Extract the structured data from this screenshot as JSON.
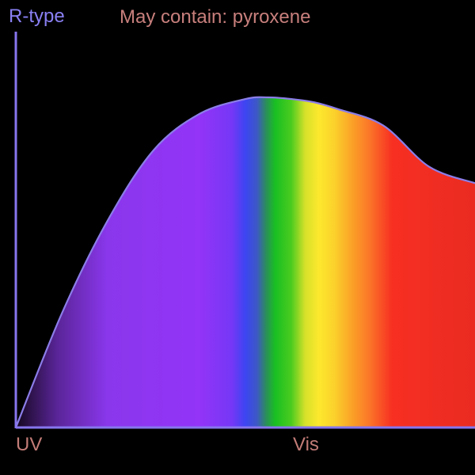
{
  "chart_data": {
    "type": "area",
    "title": "R-type",
    "subtitle": "May contain: pyroxene",
    "x_tick_labels": [
      "UV",
      "Vis"
    ],
    "xlim": [
      0,
      1
    ],
    "ylim": [
      0,
      1
    ],
    "x": [
      0.0,
      0.1,
      0.2,
      0.3,
      0.4,
      0.5,
      0.55,
      0.6,
      0.65,
      0.7,
      0.8,
      0.9,
      1.0
    ],
    "y": [
      0.0,
      0.345,
      0.627,
      0.84,
      0.95,
      0.995,
      1.0,
      0.995,
      0.985,
      0.965,
      0.915,
      0.79,
      0.74
    ],
    "spectrum_colors": [
      {
        "offset": 0.0,
        "color": "#150820"
      },
      {
        "offset": 0.09,
        "color": "#5a2598"
      },
      {
        "offset": 0.2,
        "color": "#8a37ec"
      },
      {
        "offset": 0.4,
        "color": "#9334f7"
      },
      {
        "offset": 0.47,
        "color": "#7637f6"
      },
      {
        "offset": 0.5,
        "color": "#3c45f2"
      },
      {
        "offset": 0.525,
        "color": "#3d58c6"
      },
      {
        "offset": 0.545,
        "color": "#2b8e5a"
      },
      {
        "offset": 0.565,
        "color": "#19bf22"
      },
      {
        "offset": 0.6,
        "color": "#4bcc1f"
      },
      {
        "offset": 0.63,
        "color": "#d6e12a"
      },
      {
        "offset": 0.66,
        "color": "#fde82d"
      },
      {
        "offset": 0.695,
        "color": "#fbd02b"
      },
      {
        "offset": 0.735,
        "color": "#fb9e27"
      },
      {
        "offset": 0.77,
        "color": "#fb7628"
      },
      {
        "offset": 0.82,
        "color": "#f72f22"
      },
      {
        "offset": 1.0,
        "color": "#ea2b21"
      }
    ],
    "colors": {
      "axis": "#8776ee",
      "curve": "#8b7de8",
      "title": "#8a80f4",
      "subtitle": "#c77f7c",
      "tick_label": "#c27c77"
    },
    "grid": false,
    "legend": "none"
  }
}
